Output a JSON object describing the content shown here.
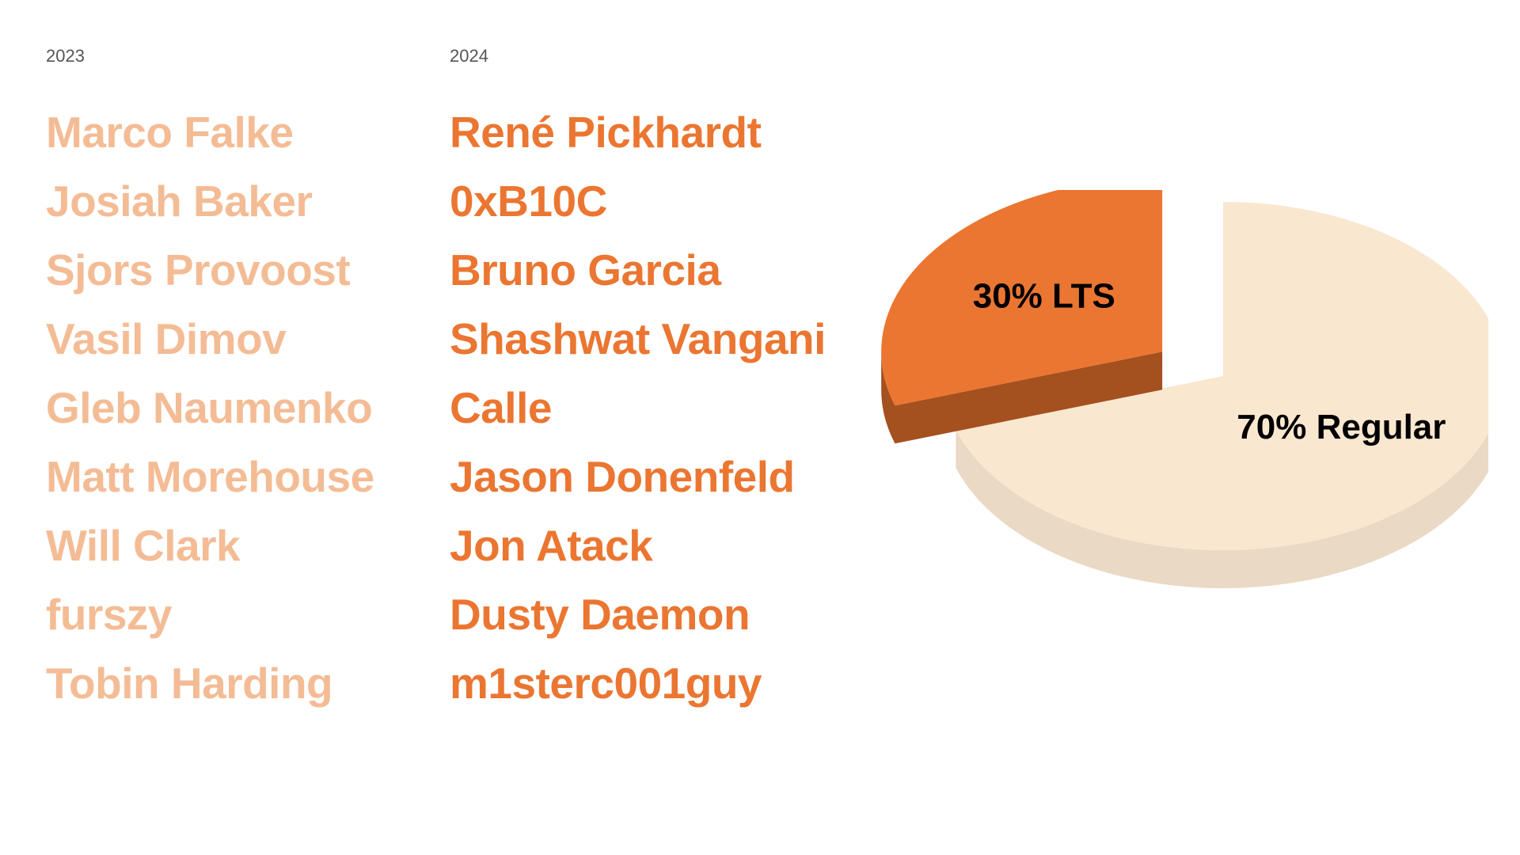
{
  "columns": [
    {
      "year": "2023",
      "names": [
        "Marco Falke",
        "Josiah Baker",
        "Sjors Provoost",
        "Vasil Dimov",
        "Gleb Naumenko",
        "Matt Morehouse",
        "Will Clark",
        "furszy",
        "Tobin Harding"
      ]
    },
    {
      "year": "2024",
      "names": [
        "René Pickhardt",
        "0xB10C",
        "Bruno Garcia",
        "Shashwat Vangani",
        "Calle",
        "Jason Donenfeld",
        "Jon Atack",
        "Dusty Daemon",
        "m1sterc001guy"
      ]
    }
  ],
  "colors": {
    "name_2023": "#F4BC95",
    "name_2024": "#EB7631",
    "slice_lts_top": "#EB7631",
    "slice_lts_side": "#A5501F",
    "slice_regular_top": "#FAE7CF",
    "slice_regular_side": "#EAD9C4"
  },
  "chart_data": {
    "type": "pie",
    "style": "3d-exploded",
    "slices": [
      {
        "name": "LTS",
        "value": 30,
        "label": "30% LTS",
        "exploded": true
      },
      {
        "name": "Regular",
        "value": 70,
        "label": "70% Regular",
        "exploded": false
      }
    ]
  }
}
